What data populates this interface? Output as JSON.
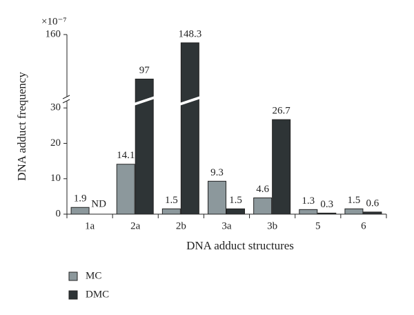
{
  "chart_data": {
    "type": "bar",
    "y_scale_label": "×10⁻⁷",
    "xlabel": "DNA adduct structures",
    "ylabel": "DNA adduct frequency",
    "categories": [
      "1a",
      "2a",
      "2b",
      "3a",
      "3b",
      "5",
      "6"
    ],
    "series": [
      {
        "name": "MC",
        "color": "#8c989c",
        "values": [
          1.9,
          14.1,
          1.5,
          9.3,
          4.6,
          1.3,
          1.5
        ],
        "value_labels": [
          "1.9",
          "14.1",
          "1.5",
          "9.3",
          "4.6",
          "1.3",
          "1.5"
        ]
      },
      {
        "name": "DMC",
        "color": "#2e3436",
        "values": [
          null,
          97,
          148.3,
          1.5,
          26.7,
          0.3,
          0.6
        ],
        "value_labels": [
          "ND",
          "97",
          "148.3",
          "1.5",
          "26.7",
          "0.3",
          "0.6"
        ]
      }
    ],
    "ylim": [
      0,
      160
    ],
    "y_break": [
      32,
      72
    ],
    "yticks": [
      0,
      10,
      20,
      30,
      160
    ],
    "legend": "bottom-left"
  }
}
